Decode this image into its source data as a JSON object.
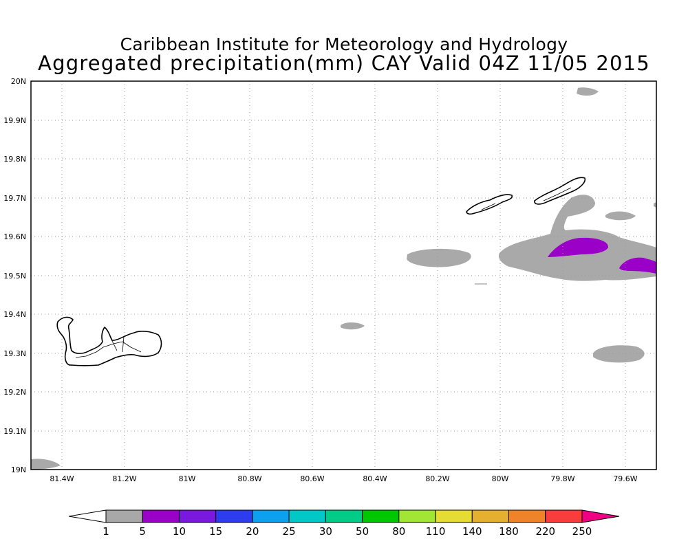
{
  "header": {
    "title_line1": "Caribbean Institute for Meteorology and Hydrology",
    "title_line2": "Aggregated precipitation(mm) CAY Valid 04Z 11/05 2015"
  },
  "map": {
    "lon_range": [
      -81.5,
      -79.5
    ],
    "lat_range": [
      19.0,
      20.0
    ],
    "grid": true,
    "lat_labels": [
      "20N",
      "19.9N",
      "19.8N",
      "19.7N",
      "19.6N",
      "19.5N",
      "19.4N",
      "19.3N",
      "19.2N",
      "19.1N",
      "19N"
    ],
    "lon_labels": [
      "81.4W",
      "81.2W",
      "81W",
      "80.8W",
      "80.6W",
      "80.4W",
      "80.2W",
      "80W",
      "79.8W",
      "79.6W"
    ],
    "precip_colors": {
      "1-5 mm": "#a9a9a9",
      "5-10 mm": "#9a00c8"
    }
  },
  "colorbar": {
    "labels": [
      "1",
      "5",
      "10",
      "15",
      "20",
      "25",
      "30",
      "50",
      "80",
      "110",
      "140",
      "180",
      "220",
      "250"
    ],
    "colors": [
      "#a8a8a8",
      "#9a00c8",
      "#7b18e0",
      "#2e3cf0",
      "#0ca0f0",
      "#00c8c8",
      "#00cc88",
      "#00c800",
      "#a0e632",
      "#e6dc32",
      "#e6af2d",
      "#f08228",
      "#fa3c3c",
      "#f00082"
    ]
  }
}
